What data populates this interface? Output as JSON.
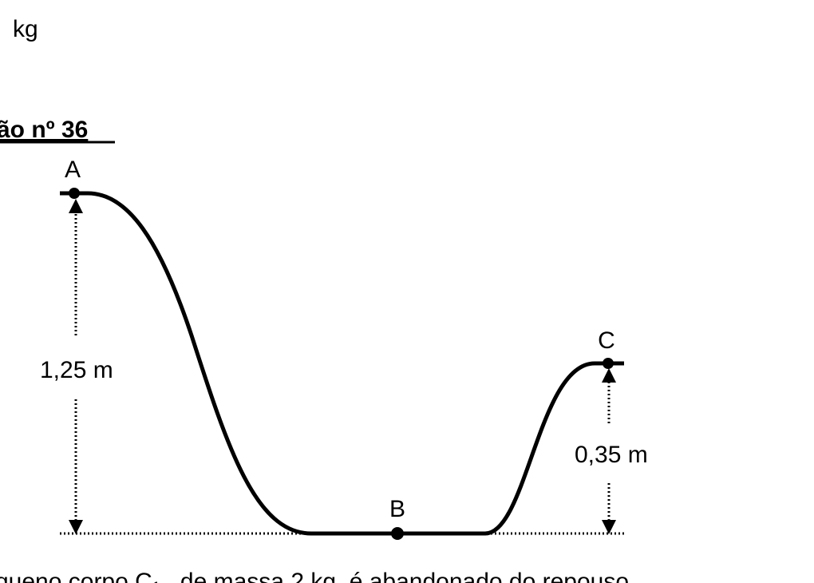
{
  "header": {
    "unit": "kg",
    "title": "ão nº 36"
  },
  "diagram": {
    "points": [
      {
        "label": "A"
      },
      {
        "label": "B"
      },
      {
        "label": "C"
      }
    ],
    "heights": [
      {
        "label": "1,25 m"
      },
      {
        "label": "0,35 m"
      }
    ]
  },
  "body": {
    "text": "queno corpo  C₁ , de massa 2 kg, é abandonado do repouso"
  }
}
